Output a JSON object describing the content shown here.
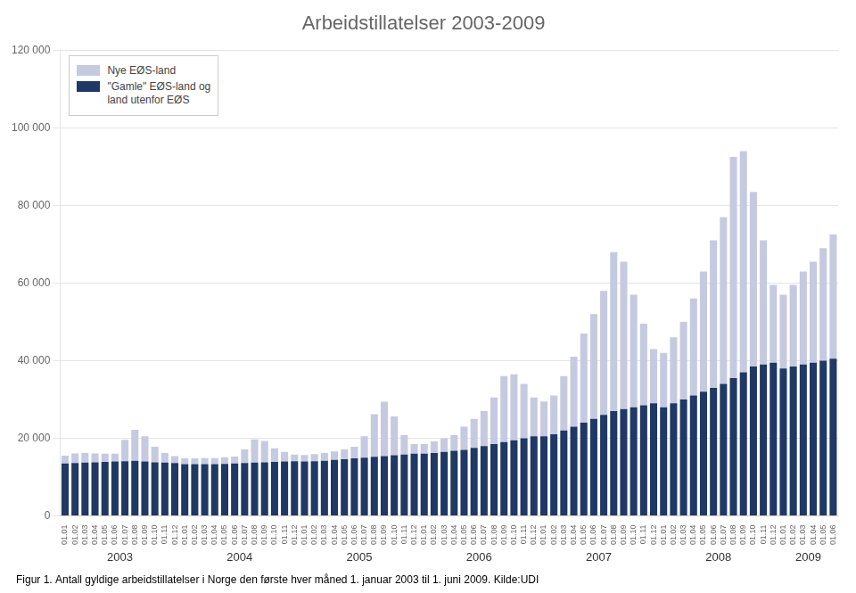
{
  "chart_data": {
    "type": "bar",
    "stacked": true,
    "title": "Arbeidstillatelser 2003-2009",
    "caption": "Figur 1. Antall gyldige arbeidstillatelser i Norge den første hver måned 1. januar 2003 til 1. juni 2009. Kilde:UDI",
    "categories": [
      "01.01",
      "01.02",
      "01.03",
      "01.04",
      "01.05",
      "01.06",
      "01.07",
      "01.08",
      "01.09",
      "01.10",
      "01.11",
      "01.12",
      "01.01",
      "01.02",
      "01.03",
      "01.04",
      "01.05",
      "01.06",
      "01.07",
      "01.08",
      "01.09",
      "01.10",
      "01.11",
      "01.12",
      "01.01",
      "01.02",
      "01.03",
      "01.04",
      "01.05",
      "01.06",
      "01.07",
      "01.08",
      "01.09",
      "01.10",
      "01.11",
      "01.12",
      "01.01",
      "01.02",
      "01.03",
      "01.04",
      "01.05",
      "01.06",
      "01.07",
      "01.08",
      "01.09",
      "01.10",
      "01.11",
      "01.12",
      "01.01",
      "01.02",
      "01.03",
      "01.04",
      "01.05",
      "01.06",
      "01.07",
      "01.08",
      "01.09",
      "01.10",
      "01.11",
      "01.12",
      "01.01",
      "01.02",
      "01.03",
      "01.04",
      "01.05",
      "01.06",
      "01.07",
      "01.08",
      "01.09",
      "01.10",
      "01.11",
      "01.12",
      "01.01",
      "01.02",
      "01.03",
      "01.04",
      "01.05",
      "01.06"
    ],
    "series": [
      {
        "name": "\"Gamle\" EØS-land og\nland utenfor EØS",
        "color": "#1F3864",
        "values": [
          13500,
          13600,
          13700,
          13800,
          13900,
          14000,
          14100,
          14200,
          14000,
          13800,
          13700,
          13600,
          13300,
          13300,
          13300,
          13300,
          13400,
          13500,
          13600,
          13700,
          13800,
          13900,
          14000,
          14100,
          14000,
          14100,
          14200,
          14400,
          14600,
          14800,
          15000,
          15200,
          15400,
          15600,
          15800,
          16000,
          16000,
          16200,
          16500,
          16800,
          17000,
          17500,
          18000,
          18500,
          19000,
          19500,
          20000,
          20500,
          20500,
          21000,
          22000,
          23000,
          24000,
          25000,
          26000,
          27000,
          27500,
          28000,
          28500,
          29000,
          28000,
          29000,
          30000,
          31000,
          32000,
          33000,
          34000,
          35500,
          37000,
          38500,
          39000,
          39500,
          38000,
          38500,
          39000,
          39500,
          40000,
          40500
        ]
      },
      {
        "name": "Nye EØS-land",
        "color": "#C5CAE0",
        "values": [
          2000,
          2500,
          2500,
          2300,
          2100,
          2000,
          5500,
          8000,
          6500,
          4000,
          2500,
          1800,
          1500,
          1500,
          1600,
          1600,
          1700,
          1800,
          3500,
          6000,
          5500,
          3500,
          2500,
          1700,
          1700,
          1800,
          2000,
          2200,
          2500,
          3000,
          5500,
          11000,
          14000,
          10000,
          5000,
          2500,
          2500,
          3000,
          3500,
          4000,
          6000,
          7500,
          9000,
          12000,
          17000,
          17000,
          14000,
          10000,
          9000,
          10000,
          14000,
          18000,
          23000,
          27000,
          32000,
          41000,
          38000,
          29000,
          21000,
          14000,
          14000,
          17000,
          20000,
          25000,
          31000,
          38000,
          43000,
          57000,
          57000,
          45000,
          32000,
          20000,
          19000,
          21000,
          24000,
          26000,
          29000,
          32000
        ]
      }
    ],
    "ylim": [
      0,
      120000
    ],
    "yticks": [
      0,
      {
        "value": 20000,
        "label": "20 000"
      },
      {
        "value": 40000,
        "label": "40 000"
      },
      {
        "value": 60000,
        "label": "60 000"
      },
      {
        "value": 80000,
        "label": "80 000"
      },
      {
        "value": 100000,
        "label": "100 000"
      },
      {
        "value": 120000,
        "label": "120 000"
      }
    ],
    "grid": true,
    "legend": "upper left",
    "annotations": [
      {
        "text": "2003",
        "span": 12
      },
      {
        "text": "2004",
        "span": 12
      },
      {
        "text": "2005",
        "span": 12
      },
      {
        "text": "2006",
        "span": 12
      },
      {
        "text": "2007",
        "span": 12
      },
      {
        "text": "2008",
        "span": 12
      },
      {
        "text": "2009",
        "span": 6
      }
    ]
  }
}
